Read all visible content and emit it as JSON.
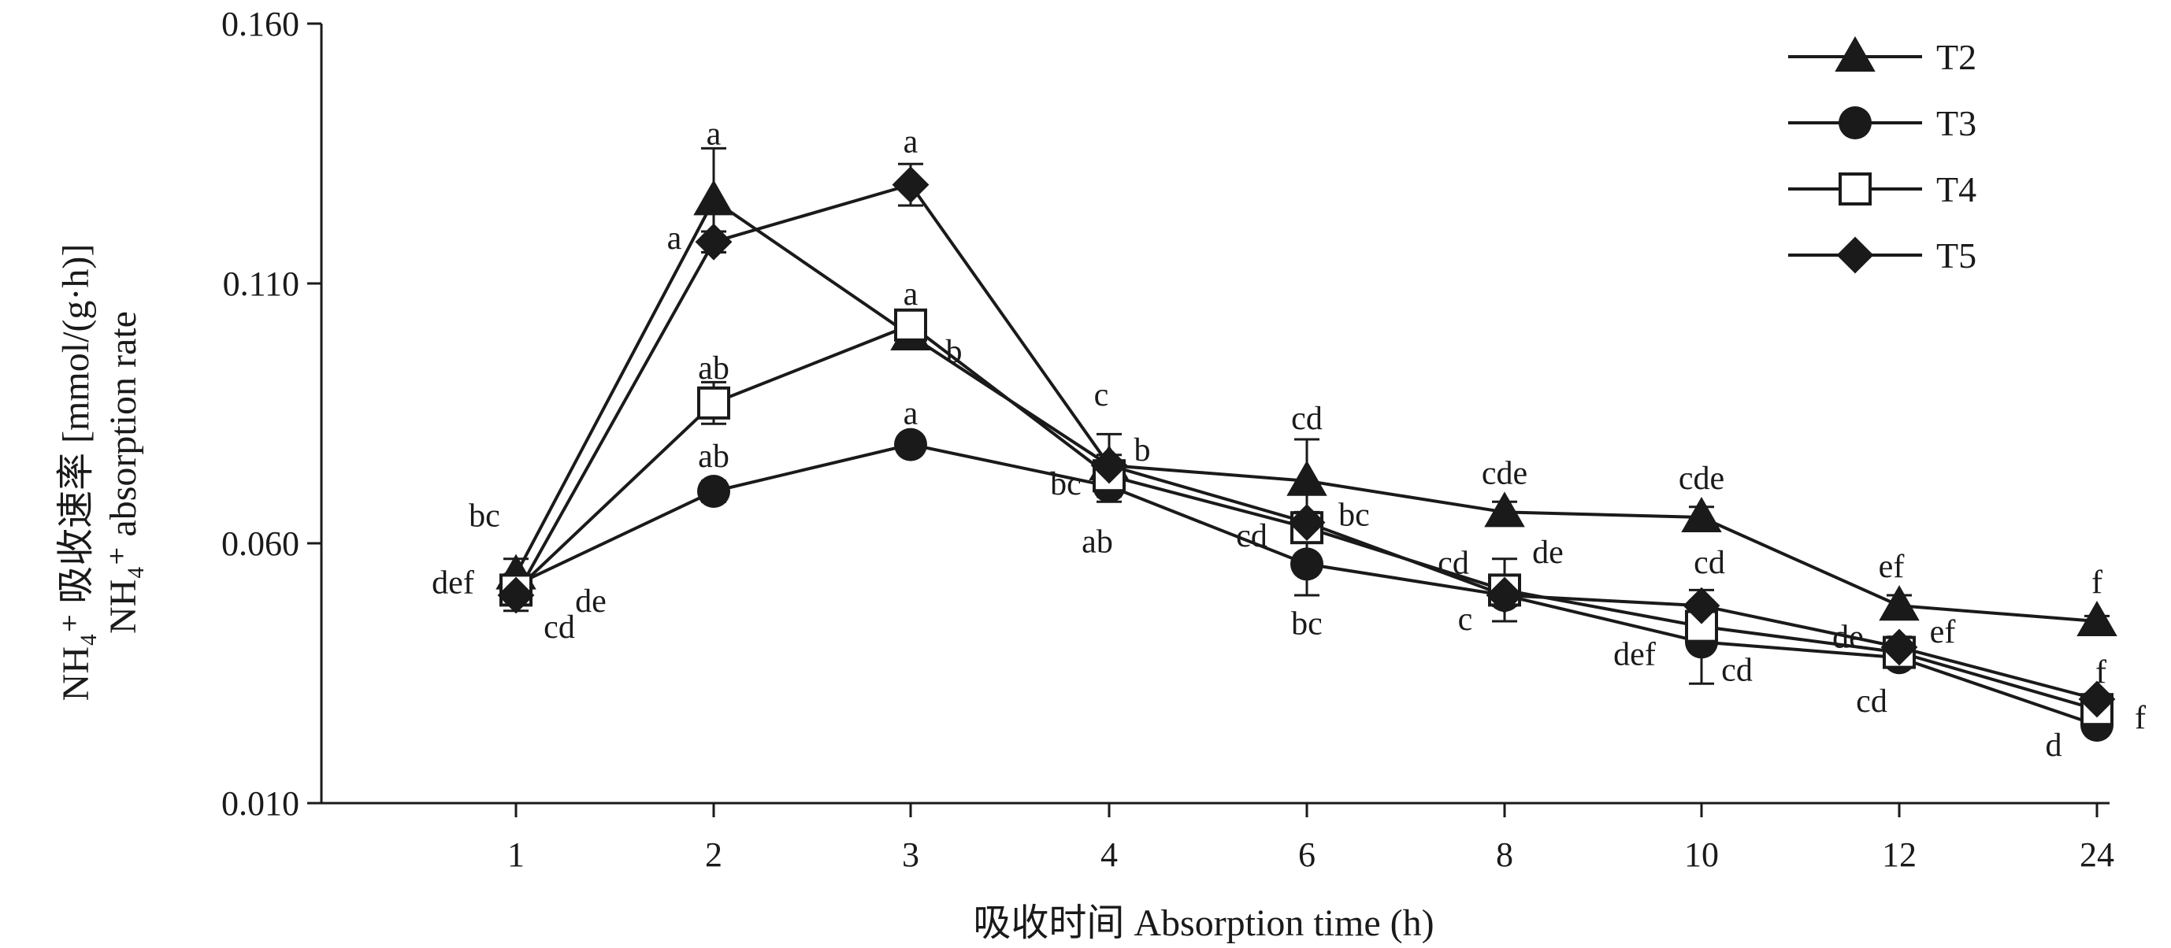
{
  "chart_data": {
    "type": "line",
    "title": "",
    "xlabel": "吸收时间 Absorption time (h)",
    "ylabel_cn": "NH₄⁺ 吸收速率 [mmol/(g·h)]",
    "ylabel_en": "NH₄⁺ absorption rate",
    "categories": [
      "1",
      "2",
      "3",
      "4",
      "6",
      "8",
      "10",
      "12",
      "24"
    ],
    "ylim": [
      0.01,
      0.16
    ],
    "yticks": [
      "0.010",
      "0.060",
      "0.110",
      "0.160"
    ],
    "grid": false,
    "legend_position": "top-right",
    "series": [
      {
        "name": "T2",
        "marker": "triangle",
        "values": [
          0.054,
          0.126,
          0.1,
          0.075,
          0.072,
          0.066,
          0.065,
          0.048,
          0.045
        ],
        "errors": [
          0.003,
          0.01,
          0.002,
          0.002,
          0.008,
          0.002,
          0.002,
          0.002,
          0.001
        ],
        "labels": [
          "bc",
          "a",
          "b",
          "b",
          "cd",
          "cde",
          "cde",
          "ef",
          "f"
        ]
      },
      {
        "name": "T3",
        "marker": "circle",
        "values": [
          0.052,
          0.07,
          0.079,
          0.071,
          0.056,
          0.05,
          0.041,
          0.038,
          0.025
        ],
        "errors": [
          0.002,
          0.002,
          0.001,
          0.003,
          0.006,
          0.002,
          0.008,
          0.001,
          0.001
        ],
        "labels": [
          "de",
          "ab",
          "a",
          "ab",
          "bc",
          "c",
          "cd",
          "cd",
          "d"
        ]
      },
      {
        "name": "T4",
        "marker": "square",
        "values": [
          0.051,
          0.087,
          0.102,
          0.073,
          0.063,
          0.051,
          0.044,
          0.039,
          0.028
        ],
        "errors": [
          0.002,
          0.004,
          0.002,
          0.003,
          0.002,
          0.006,
          0.003,
          0.002,
          0.001
        ],
        "labels": [
          "def",
          "ab",
          "a",
          "bc",
          "cd",
          "cd",
          "def",
          "de",
          "f"
        ]
      },
      {
        "name": "T5",
        "marker": "diamond",
        "values": [
          0.05,
          0.118,
          0.129,
          0.075,
          0.064,
          0.05,
          0.048,
          0.04,
          0.03
        ],
        "errors": [
          0.003,
          0.002,
          0.004,
          0.006,
          0.002,
          0.002,
          0.003,
          0.002,
          0.001
        ],
        "labels": [
          "cd",
          "a",
          "a",
          "c",
          "bc",
          "de",
          "cd",
          "ef",
          "f"
        ]
      }
    ],
    "colors": {
      "line": "#1a1a1a",
      "fill": "#1a1a1a",
      "open_fill": "#ffffff"
    }
  }
}
